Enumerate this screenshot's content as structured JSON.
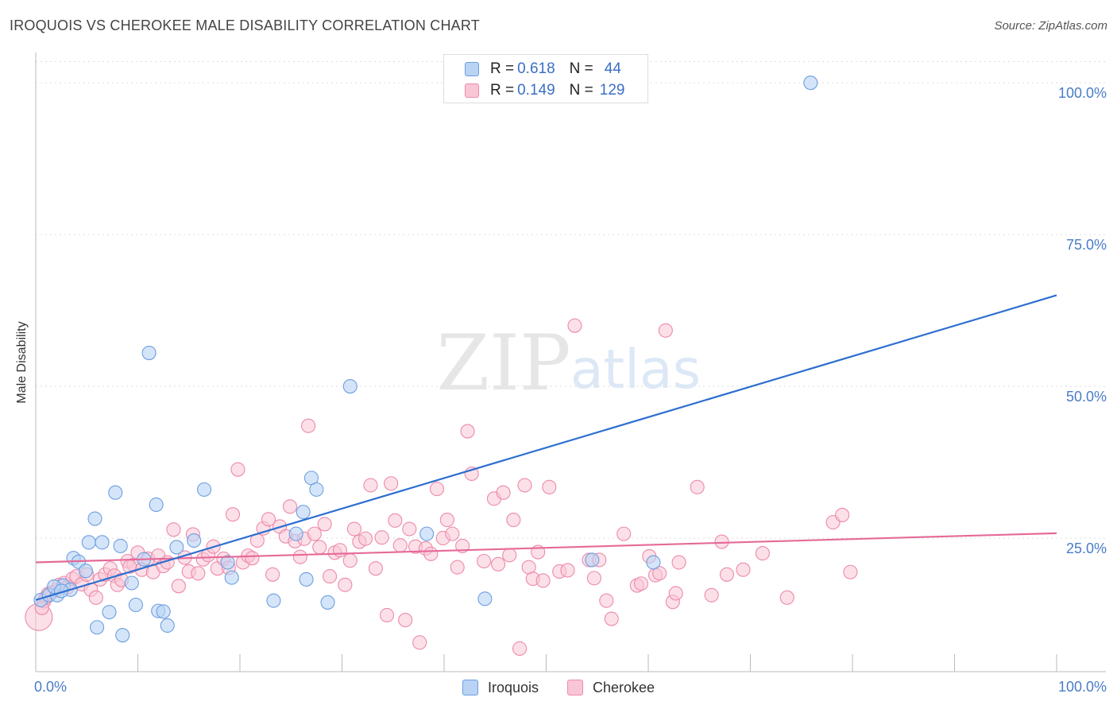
{
  "title": "IROQUOIS VS CHEROKEE MALE DISABILITY CORRELATION CHART",
  "source": "Source: ZipAtlas.com",
  "watermark": {
    "zip": "ZIP",
    "atlas": "atlas"
  },
  "colors": {
    "iroquois_fill": "#b9d3f5",
    "iroquois_stroke": "#6d9ee0",
    "iroquois_line": "#2d6fd0",
    "cherokee_fill": "#f9c6d6",
    "cherokee_stroke": "#ec8aab",
    "cherokee_line": "#e56a98",
    "tick_label": "#4a7cc7"
  },
  "legend": {
    "rows": [
      {
        "r_label": "R = ",
        "r_value": "0.618",
        "n_label": "N = ",
        "n_value": "44"
      },
      {
        "r_label": "R = ",
        "r_value": "0.149",
        "n_label": "N = ",
        "n_value": "129"
      }
    ]
  },
  "chart_data": {
    "type": "scatter",
    "title": "IROQUOIS VS CHEROKEE MALE DISABILITY CORRELATION CHART",
    "xlabel": "",
    "ylabel": "Male Disability",
    "xlim": [
      0,
      100
    ],
    "ylim": [
      3,
      105
    ],
    "x_tick_labels": [
      "0.0%",
      "100.0%"
    ],
    "y_ticks": [
      25,
      50,
      75,
      100
    ],
    "y_tick_labels": [
      "25.0%",
      "50.0%",
      "75.0%",
      "100.0%"
    ],
    "grid": "horizontal dashed",
    "legend_position": "top-center",
    "series": [
      {
        "name": "Iroquois",
        "r": 0.618,
        "n": 44,
        "trend": {
          "x": [
            0,
            100
          ],
          "y": [
            14.8,
            65.0
          ]
        },
        "points": [
          [
            0.5,
            14.8
          ],
          [
            1.3,
            15.6
          ],
          [
            2.1,
            15.6
          ],
          [
            2.7,
            17.2
          ],
          [
            3.4,
            16.5
          ],
          [
            3.7,
            21.7
          ],
          [
            4.2,
            21.1
          ],
          [
            4.9,
            19.6
          ],
          [
            5.2,
            24.3
          ],
          [
            5.8,
            28.2
          ],
          [
            6.0,
            10.3
          ],
          [
            6.5,
            24.3
          ],
          [
            7.2,
            12.8
          ],
          [
            7.8,
            32.5
          ],
          [
            8.3,
            23.7
          ],
          [
            8.5,
            9.0
          ],
          [
            9.4,
            17.6
          ],
          [
            9.8,
            14.0
          ],
          [
            10.6,
            21.5
          ],
          [
            11.1,
            55.5
          ],
          [
            11.8,
            30.5
          ],
          [
            12.0,
            13.0
          ],
          [
            12.5,
            12.9
          ],
          [
            12.9,
            10.6
          ],
          [
            13.8,
            23.5
          ],
          [
            15.5,
            24.6
          ],
          [
            16.5,
            33.0
          ],
          [
            18.8,
            21.0
          ],
          [
            19.2,
            18.5
          ],
          [
            23.3,
            14.7
          ],
          [
            25.5,
            25.7
          ],
          [
            26.2,
            29.3
          ],
          [
            26.5,
            18.2
          ],
          [
            27.0,
            34.9
          ],
          [
            27.5,
            33.0
          ],
          [
            28.6,
            14.4
          ],
          [
            30.8,
            50.0
          ],
          [
            38.3,
            25.7
          ],
          [
            44.0,
            15.0
          ],
          [
            54.5,
            21.4
          ],
          [
            60.5,
            21.0
          ],
          [
            75.9,
            100.0
          ],
          [
            1.8,
            17.0
          ],
          [
            2.5,
            16.3
          ]
        ]
      },
      {
        "name": "Cherokee",
        "r": 0.149,
        "n": 129,
        "trend": {
          "x": [
            0,
            100
          ],
          "y": [
            21.0,
            25.8
          ]
        },
        "points": [
          [
            0.3,
            12.0
          ],
          [
            0.8,
            14.6
          ],
          [
            1.0,
            15.2
          ],
          [
            1.5,
            16.0
          ],
          [
            2.0,
            16.4
          ],
          [
            2.3,
            17.3
          ],
          [
            2.8,
            17.6
          ],
          [
            3.1,
            16.9
          ],
          [
            3.6,
            18.3
          ],
          [
            4.0,
            18.7
          ],
          [
            4.5,
            17.4
          ],
          [
            5.0,
            19.0
          ],
          [
            5.4,
            16.5
          ],
          [
            5.9,
            15.2
          ],
          [
            6.3,
            18.2
          ],
          [
            6.8,
            19.0
          ],
          [
            7.3,
            20.0
          ],
          [
            7.7,
            18.8
          ],
          [
            8.0,
            17.3
          ],
          [
            8.4,
            18.1
          ],
          [
            9.0,
            21.2
          ],
          [
            9.6,
            20.6
          ],
          [
            10.0,
            22.6
          ],
          [
            10.4,
            19.8
          ],
          [
            11.0,
            21.6
          ],
          [
            11.5,
            19.4
          ],
          [
            12.0,
            22.1
          ],
          [
            12.5,
            20.4
          ],
          [
            12.9,
            21.0
          ],
          [
            13.5,
            26.4
          ],
          [
            14.0,
            17.1
          ],
          [
            14.6,
            21.8
          ],
          [
            15.0,
            19.5
          ],
          [
            15.4,
            25.6
          ],
          [
            15.9,
            19.2
          ],
          [
            16.4,
            21.5
          ],
          [
            16.9,
            22.2
          ],
          [
            17.4,
            23.6
          ],
          [
            17.8,
            20.0
          ],
          [
            18.4,
            21.6
          ],
          [
            18.9,
            20.1
          ],
          [
            19.3,
            28.9
          ],
          [
            19.8,
            36.3
          ],
          [
            20.3,
            21.0
          ],
          [
            20.8,
            22.1
          ],
          [
            21.2,
            21.7
          ],
          [
            21.7,
            24.6
          ],
          [
            22.3,
            26.6
          ],
          [
            22.8,
            28.1
          ],
          [
            23.2,
            19.0
          ],
          [
            23.9,
            26.9
          ],
          [
            24.5,
            25.3
          ],
          [
            24.9,
            30.2
          ],
          [
            25.4,
            24.5
          ],
          [
            25.9,
            21.9
          ],
          [
            26.3,
            24.9
          ],
          [
            26.7,
            43.5
          ],
          [
            27.3,
            25.7
          ],
          [
            27.8,
            23.5
          ],
          [
            28.3,
            27.3
          ],
          [
            28.8,
            18.7
          ],
          [
            29.3,
            22.6
          ],
          [
            29.8,
            23.0
          ],
          [
            30.3,
            17.3
          ],
          [
            30.8,
            21.3
          ],
          [
            31.2,
            26.5
          ],
          [
            31.7,
            24.4
          ],
          [
            32.3,
            24.9
          ],
          [
            32.8,
            33.7
          ],
          [
            33.3,
            20.0
          ],
          [
            33.9,
            25.1
          ],
          [
            34.4,
            12.3
          ],
          [
            34.8,
            34.0
          ],
          [
            35.2,
            27.9
          ],
          [
            35.7,
            23.8
          ],
          [
            36.2,
            11.5
          ],
          [
            36.6,
            26.5
          ],
          [
            37.2,
            23.6
          ],
          [
            37.6,
            7.8
          ],
          [
            38.2,
            23.3
          ],
          [
            38.7,
            22.4
          ],
          [
            39.3,
            33.1
          ],
          [
            39.9,
            25.0
          ],
          [
            40.3,
            28.0
          ],
          [
            40.8,
            25.7
          ],
          [
            41.3,
            20.2
          ],
          [
            41.8,
            23.7
          ],
          [
            42.3,
            42.6
          ],
          [
            42.7,
            35.6
          ],
          [
            43.9,
            21.2
          ],
          [
            44.9,
            31.5
          ],
          [
            45.3,
            20.7
          ],
          [
            45.8,
            32.5
          ],
          [
            46.4,
            22.2
          ],
          [
            46.8,
            28.0
          ],
          [
            47.4,
            6.8
          ],
          [
            47.9,
            33.7
          ],
          [
            48.3,
            20.2
          ],
          [
            48.7,
            18.3
          ],
          [
            49.2,
            22.7
          ],
          [
            49.7,
            18.0
          ],
          [
            50.3,
            33.4
          ],
          [
            51.3,
            19.5
          ],
          [
            52.1,
            19.7
          ],
          [
            52.8,
            60.0
          ],
          [
            54.2,
            21.4
          ],
          [
            54.7,
            18.4
          ],
          [
            55.2,
            21.4
          ],
          [
            55.9,
            14.7
          ],
          [
            56.4,
            11.7
          ],
          [
            57.6,
            25.7
          ],
          [
            58.9,
            17.2
          ],
          [
            59.3,
            17.5
          ],
          [
            60.1,
            22.0
          ],
          [
            60.7,
            18.9
          ],
          [
            61.1,
            19.2
          ],
          [
            61.7,
            59.2
          ],
          [
            62.4,
            14.5
          ],
          [
            62.7,
            15.9
          ],
          [
            63.0,
            21.0
          ],
          [
            64.8,
            33.4
          ],
          [
            66.2,
            15.6
          ],
          [
            67.2,
            24.4
          ],
          [
            67.7,
            19.0
          ],
          [
            69.3,
            19.8
          ],
          [
            71.2,
            22.5
          ],
          [
            73.6,
            15.2
          ],
          [
            78.1,
            27.6
          ],
          [
            79.0,
            28.8
          ],
          [
            79.8,
            19.4
          ],
          [
            0.6,
            13.5
          ],
          [
            1.2,
            15.8
          ],
          [
            9.2,
            20.3
          ]
        ]
      }
    ]
  }
}
